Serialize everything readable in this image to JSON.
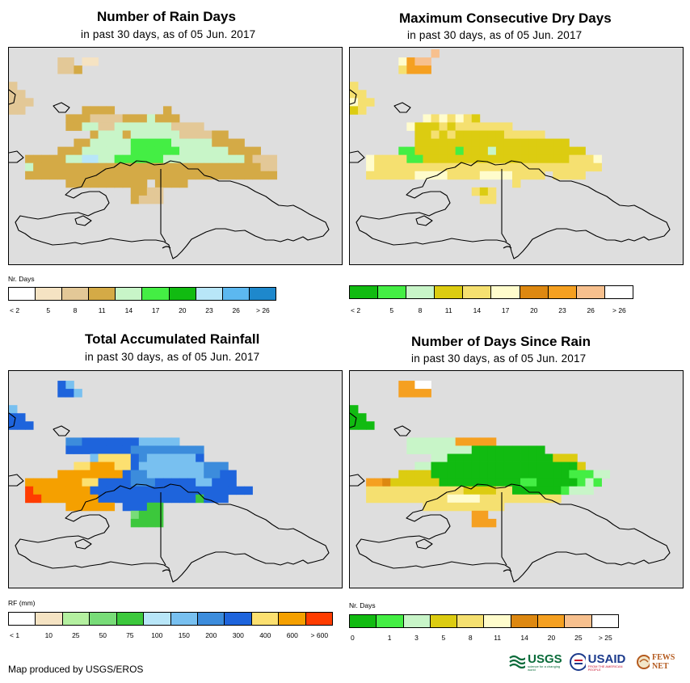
{
  "panels": [
    {
      "title": "Number of Rain Days",
      "subtitle": "in past 30 days, as of 05 Jun. 2017",
      "legend_title": "Nr. Days",
      "legend_colors": [
        "#ffffff",
        "#f5e3c3",
        "#e3c897",
        "#d4aa46",
        "#c8f5c8",
        "#44ee44",
        "#11bb11",
        "#b8e6f8",
        "#5cb8f0",
        "#1e88cc"
      ],
      "legend_ticks": [
        "< 2",
        "5",
        "8",
        "11",
        "14",
        "17",
        "20",
        "23",
        "26",
        "> 26"
      ],
      "rows": [
        ".........................................",
        "......22.11..............................",
        "......223................................",
        ".........................................",
        "2........................................",
        "22.......................................",
        "222......................................",
        "22.......3333......3.....................",
        ".......33322223334333....................",
        ".......33442244444442222.................",
        "..........34443444444222233..............",
        "........334444455555444443333............",
        "......3334444445555554444443333..........",
        "..3333344774455555544444444443222........",
        "..4333333333333333333333333333322........",
        "..3333333333333333333333333333333........",
        ".......3333333333.3333...................",
        "...............3322......................",
        "...............3222......................",
        ".........................................",
        ".........................................",
        "........................................."
      ]
    },
    {
      "title": "Maximum Consecutive Dry Days",
      "subtitle": "in past 30 days, as of 05 Jun. 2017",
      "legend_title": "",
      "legend_colors": [
        "#11bb11",
        "#44ee44",
        "#c8f5c8",
        "#dccc11",
        "#f5e070",
        "#fffccc",
        "#dd8811",
        "#f5a021",
        "#f7c08e",
        "#ffffff"
      ],
      "legend_ticks": [
        "< 2",
        "5",
        "8",
        "11",
        "14",
        "17",
        "20",
        "23",
        "26",
        "> 26"
      ],
      "rows": [
        "..........8..............................",
        "......5788...............................",
        "......4777...............................",
        ".........................................",
        "4........................................",
        "44.......................................",
        "544......................................",
        "34.......................................",
        ".........5454543.........................",
        ".......5333434444444.....................",
        "........3343433333344444.................",
        "........3333333333333333333..............",
        "......11333331333233333333333............",
        "..54444113333333333333333334445..........",
        "..54444444444444444444444444444..........",
        "..4444445555444455554444.4444............",
        "....................4....................",
        "...............434.......................",
        "................44.......................",
        ".........................................",
        ".........................................",
        "........................................."
      ]
    },
    {
      "title": "Total Accumulated Rainfall",
      "subtitle": "in past 30 days, as of 05 Jun. 2017",
      "legend_title": "RF (mm)",
      "legend_colors": [
        "#ffffff",
        "#f5e3c3",
        "#b4f0a0",
        "#78dc78",
        "#3cc83c",
        "#b8e6f8",
        "#78c0f0",
        "#3c8cdc",
        "#1e64dc",
        "#fce070",
        "#f5a000",
        "#ff3c00"
      ],
      "legend_ticks": [
        "< 1",
        "10",
        "25",
        "50",
        "75",
        "100",
        "150",
        "200",
        "300",
        "400",
        "600",
        "> 600"
      ],
      "rows": [
        ".........................................",
        "......86.................................",
        "......886................................",
        ".........................................",
        "6........................................",
        "88.......................................",
        "888......................................",
        ".........................................",
        ".......77888888866666....................",
        ".......88888888777777777.................",
        "..........69999876666668.................",
        "........99aaa99866666666777..............",
        "......aaaaaaaa87766666667788.............",
        "..aaaaaaa9988887778888866888.............",
        "..baaaaaaa88888888888888888888...........",
        "..bbaaaaaaa8888888888884888..............",
        ".......aaaaaa.88844......................",
        "...............3444......................",
        "...............4444......................",
        ".........................................",
        ".........................................",
        "........................................."
      ]
    },
    {
      "title": "Number of Days Since Rain",
      "subtitle": "in past 30 days, as of 05 Jun. 2017",
      "legend_title": "Nr. Days",
      "legend_colors": [
        "#11bb11",
        "#44ee44",
        "#c8f5c8",
        "#dccc11",
        "#f5e070",
        "#fffccc",
        "#dd8811",
        "#f5a021",
        "#f7c08e",
        "#ffffff"
      ],
      "legend_ticks": [
        "0",
        "1",
        "3",
        "5",
        "8",
        "11",
        "14",
        "20",
        "25",
        "> 25"
      ],
      "rows": [
        ".........................................",
        "......7799...............................",
        "......7777...............................",
        ".........................................",
        "0........................................",
        "00.......................................",
        "000......................................",
        ".........................................",
        ".......22222277777.......................",
        ".......22222222000000000.................",
        "..........220000000000000333.............",
        "........220000000000000000003............",
        "......33330000000000000000011122.........",
        "..77633333300000000001100000121..........",
        "..4444444444443333440000001222...........",
        "..444444444455554444444444...............",
        ".........4444444444......................",
        "...............77........................",
        "...............777.......................",
        ".........................................",
        ".........................................",
        "........................................."
      ]
    }
  ],
  "footer": {
    "credit": "Map produced by USGS/EROS"
  },
  "logos": {
    "usgs": "USGS",
    "usgs_tagline": "science for a changing world",
    "usaid": "USAID",
    "usaid_tagline": "FROM THE AMERICAN PEOPLE",
    "fews": "FEWS NET"
  }
}
